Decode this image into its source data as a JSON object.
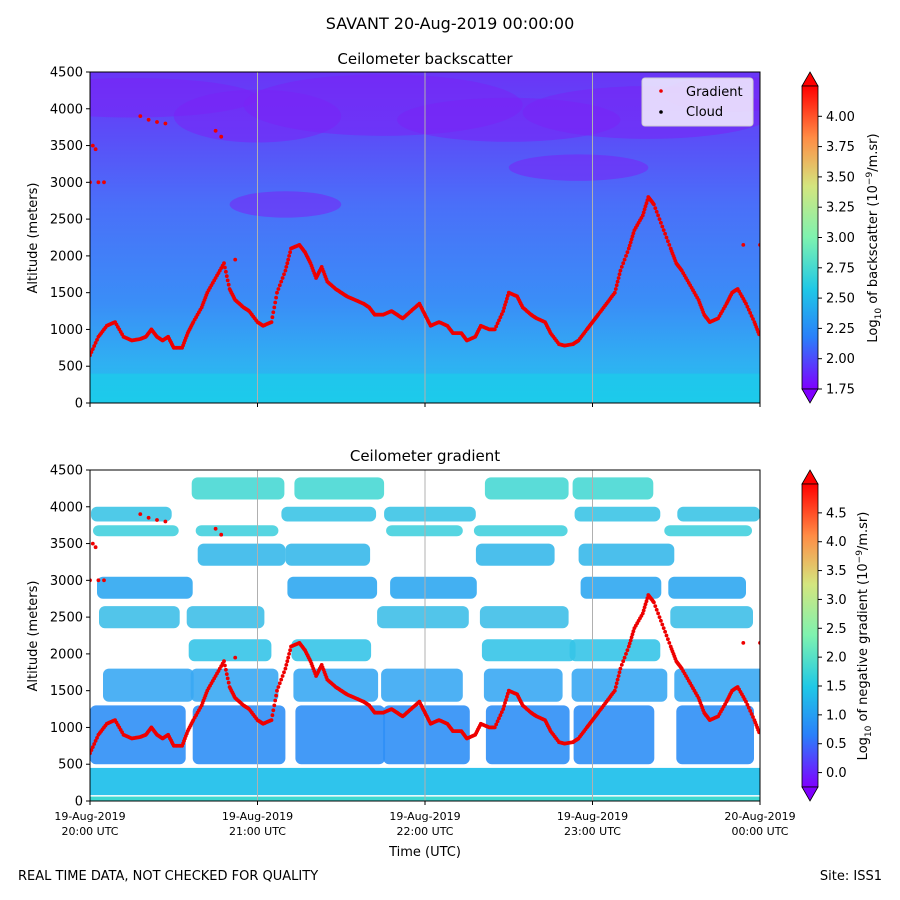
{
  "suptitle": "SAVANT 20-Aug-2019 00:00:00",
  "footer": {
    "left": "REAL TIME DATA, NOT CHECKED FOR QUALITY",
    "right": "Site: ISS1"
  },
  "colors": {
    "gradient_marker": "#ee0000",
    "cloud_marker": "#000000",
    "colormap": [
      "#7f00ff",
      "#2a7ffa",
      "#1fc8e6",
      "#7ef2b0",
      "#d4e57e",
      "#ff8c45",
      "#ff0000"
    ]
  },
  "chart_data": [
    {
      "type": "heatmap",
      "title": "Ceilometer backscatter",
      "ylabel": "Altitude (meters)",
      "ylim": [
        0,
        4500
      ],
      "yticks": [
        0,
        500,
        1000,
        1500,
        2000,
        2500,
        3000,
        3500,
        4000,
        4500
      ],
      "xlim": [
        "2019-08-19 20:00",
        "2019-08-20 00:00"
      ],
      "xticklabels_shown": false,
      "grid": "vertical",
      "legend": {
        "placement": "top-right",
        "entries": [
          {
            "label": "Gradient",
            "color": "#ee0000"
          },
          {
            "label": "Cloud",
            "color": "#000000"
          }
        ]
      },
      "colorbar": {
        "label": "Log10 of backscatter (10^-9/m.sr)",
        "label_parts": {
          "pre": "Log",
          "sub": "10",
          "mid": " of backscatter (10",
          "sup": "−9",
          "post": "/m.sr)"
        },
        "min": 1.75,
        "max": 4.25,
        "ticks": [
          "1.75",
          "2.00",
          "2.25",
          "2.50",
          "2.75",
          "3.00",
          "3.25",
          "3.50",
          "3.75",
          "4.00"
        ]
      },
      "gradient_series": {
        "name": "Gradient",
        "x_minutes_after_2000_utc": [
          0,
          3,
          6,
          9,
          12,
          15,
          18,
          20,
          22,
          24,
          26,
          28,
          30,
          33,
          35,
          37,
          40,
          42,
          45,
          48,
          50,
          52,
          55,
          57,
          60,
          62,
          65,
          67,
          70,
          72,
          75,
          77,
          79,
          81,
          83,
          85,
          88,
          90,
          92,
          95,
          98,
          100,
          102,
          105,
          108,
          110,
          112,
          115,
          118,
          120,
          122,
          125,
          128,
          130,
          133,
          135,
          138,
          140,
          143,
          145,
          148,
          150,
          153,
          155,
          158,
          160,
          163,
          165,
          168,
          170,
          173,
          175,
          178,
          180,
          182,
          185,
          188,
          190,
          193,
          195,
          198,
          200,
          202,
          205,
          208,
          210,
          212,
          215,
          218,
          220,
          222,
          225,
          228,
          230,
          232,
          235,
          238,
          240
        ],
        "altitude_m": [
          650,
          900,
          1050,
          1100,
          900,
          850,
          870,
          900,
          1000,
          900,
          850,
          900,
          750,
          750,
          950,
          1100,
          1300,
          1500,
          1700,
          1900,
          1550,
          1400,
          1300,
          1250,
          1100,
          1050,
          1100,
          1500,
          1800,
          2100,
          2150,
          2050,
          1900,
          1700,
          1850,
          1650,
          1550,
          1500,
          1450,
          1400,
          1350,
          1300,
          1200,
          1200,
          1250,
          1200,
          1150,
          1250,
          1350,
          1200,
          1050,
          1100,
          1050,
          950,
          950,
          850,
          900,
          1050,
          1000,
          1000,
          1250,
          1500,
          1450,
          1300,
          1200,
          1150,
          1100,
          950,
          800,
          780,
          800,
          850,
          1000,
          1100,
          1200,
          1350,
          1500,
          1800,
          2100,
          2350,
          2550,
          2800,
          2700,
          2400,
          2100,
          1900,
          1800,
          1600,
          1400,
          1200,
          1100,
          1150,
          1350,
          1500,
          1550,
          1350,
          1100,
          900
        ],
        "extra_points": [
          {
            "x": 1,
            "y": 3500
          },
          {
            "x": 2,
            "y": 3450
          },
          {
            "x": 0,
            "y": 3000
          },
          {
            "x": 3,
            "y": 3000
          },
          {
            "x": 5,
            "y": 3000
          },
          {
            "x": 18,
            "y": 3900
          },
          {
            "x": 21,
            "y": 3850
          },
          {
            "x": 24,
            "y": 3820
          },
          {
            "x": 27,
            "y": 3800
          },
          {
            "x": 45,
            "y": 3700
          },
          {
            "x": 47,
            "y": 3620
          },
          {
            "x": 52,
            "y": 1950
          },
          {
            "x": 234,
            "y": 2150
          },
          {
            "x": 240,
            "y": 2150
          }
        ]
      }
    },
    {
      "type": "heatmap",
      "title": "Ceilometer gradient",
      "xlabel": "Time (UTC)",
      "ylabel": "Altitude (meters)",
      "ylim": [
        0,
        4500
      ],
      "yticks": [
        0,
        500,
        1000,
        1500,
        2000,
        2500,
        3000,
        3500,
        4000,
        4500
      ],
      "xlim": [
        "2019-08-19 20:00",
        "2019-08-20 00:00"
      ],
      "xticks": [
        {
          "line1": "19-Aug-2019",
          "line2": "20:00 UTC"
        },
        {
          "line1": "19-Aug-2019",
          "line2": "21:00 UTC"
        },
        {
          "line1": "19-Aug-2019",
          "line2": "22:00 UTC"
        },
        {
          "line1": "19-Aug-2019",
          "line2": "23:00 UTC"
        },
        {
          "line1": "20-Aug-2019",
          "line2": "00:00 UTC"
        }
      ],
      "grid": "vertical",
      "colorbar": {
        "label": "Log10 of negative gradient (10^-9/m.sr)",
        "label_parts": {
          "pre": "Log",
          "sub": "10",
          "mid": " of negative gradient (10",
          "sup": "−9",
          "post": "/m.sr)"
        },
        "min": -0.25,
        "max": 5.0,
        "ticks": [
          "0.0",
          "0.5",
          "1.0",
          "1.5",
          "2.0",
          "2.5",
          "3.0",
          "3.5",
          "4.0",
          "4.5"
        ]
      },
      "gradient_series_same_as_panel": 0,
      "gradient_layers_altitude_m": [
        {
          "y0": 500,
          "y1": 1300
        },
        {
          "y0": 1350,
          "y1": 1800
        },
        {
          "y0": 1900,
          "y1": 2200
        },
        {
          "y0": 2350,
          "y1": 2650
        },
        {
          "y0": 2750,
          "y1": 3050
        },
        {
          "y0": 3200,
          "y1": 3500
        },
        {
          "y0": 3600,
          "y1": 3750
        },
        {
          "y0": 3800,
          "y1": 4000
        },
        {
          "y0": 4100,
          "y1": 4400
        }
      ]
    }
  ]
}
